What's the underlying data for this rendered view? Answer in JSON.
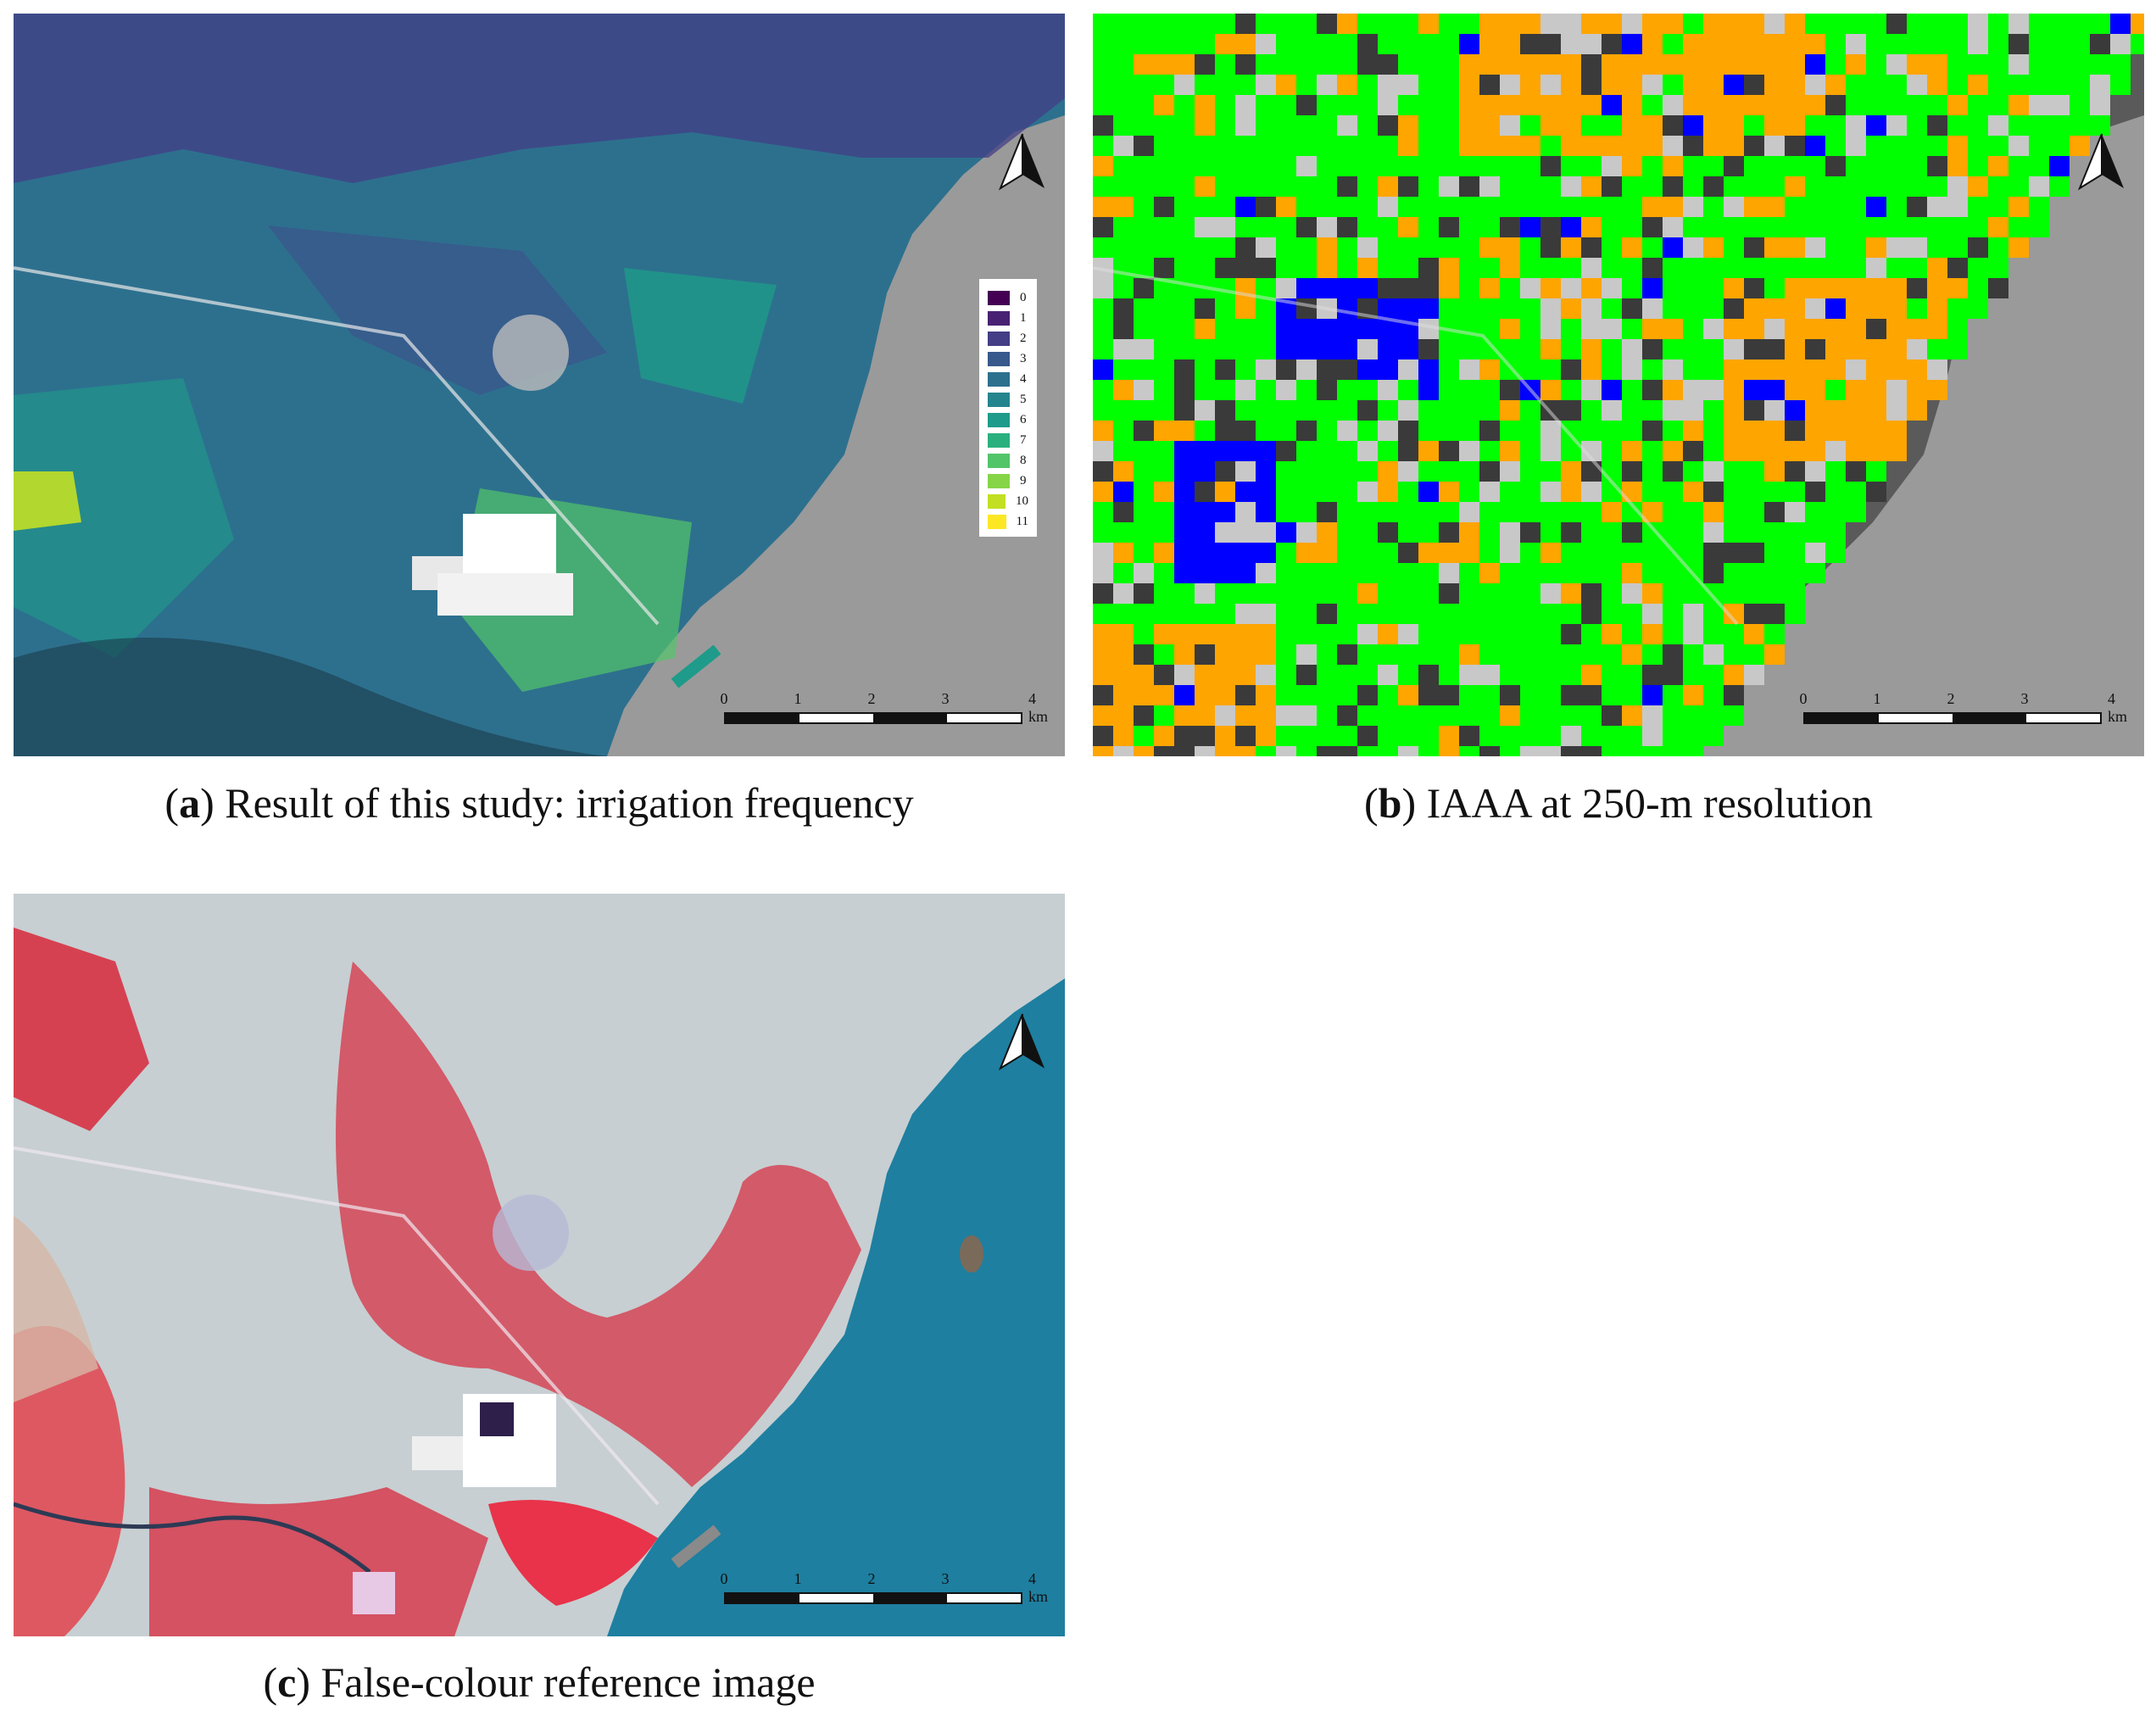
{
  "panels": [
    {
      "id": "a",
      "caption_letter": "a",
      "caption_text": "Result of this study: irrigation frequency",
      "legend": [
        {
          "label": "0",
          "color": "#440154"
        },
        {
          "label": "1",
          "color": "#482173"
        },
        {
          "label": "2",
          "color": "#433e85"
        },
        {
          "label": "3",
          "color": "#38598c"
        },
        {
          "label": "4",
          "color": "#2d708e"
        },
        {
          "label": "5",
          "color": "#25858e"
        },
        {
          "label": "6",
          "color": "#1e9b8a"
        },
        {
          "label": "7",
          "color": "#2ab07f"
        },
        {
          "label": "8",
          "color": "#52c569"
        },
        {
          "label": "9",
          "color": "#86d549"
        },
        {
          "label": "10",
          "color": "#c2df23"
        },
        {
          "label": "11",
          "color": "#fde725"
        }
      ]
    },
    {
      "id": "b",
      "caption_letter": "b",
      "caption_text": "IAAA at 250-m resolution",
      "class_colors": {
        "green": "#00ff00",
        "orange": "#ffa500",
        "blue": "#0000ff"
      }
    },
    {
      "id": "c",
      "caption_letter": "c",
      "caption_text": "False-colour reference image"
    }
  ],
  "scalebar": {
    "labels": [
      "0",
      "1",
      "2",
      "3",
      "4 km"
    ]
  },
  "north_arrow_icon": "north-arrow-icon",
  "colors": {
    "sea_gray": "#9a9a9a",
    "sea_blue": "#1e7fa0",
    "vegetation_red": "#d8283c",
    "land_pale": "#c7cfd2"
  }
}
